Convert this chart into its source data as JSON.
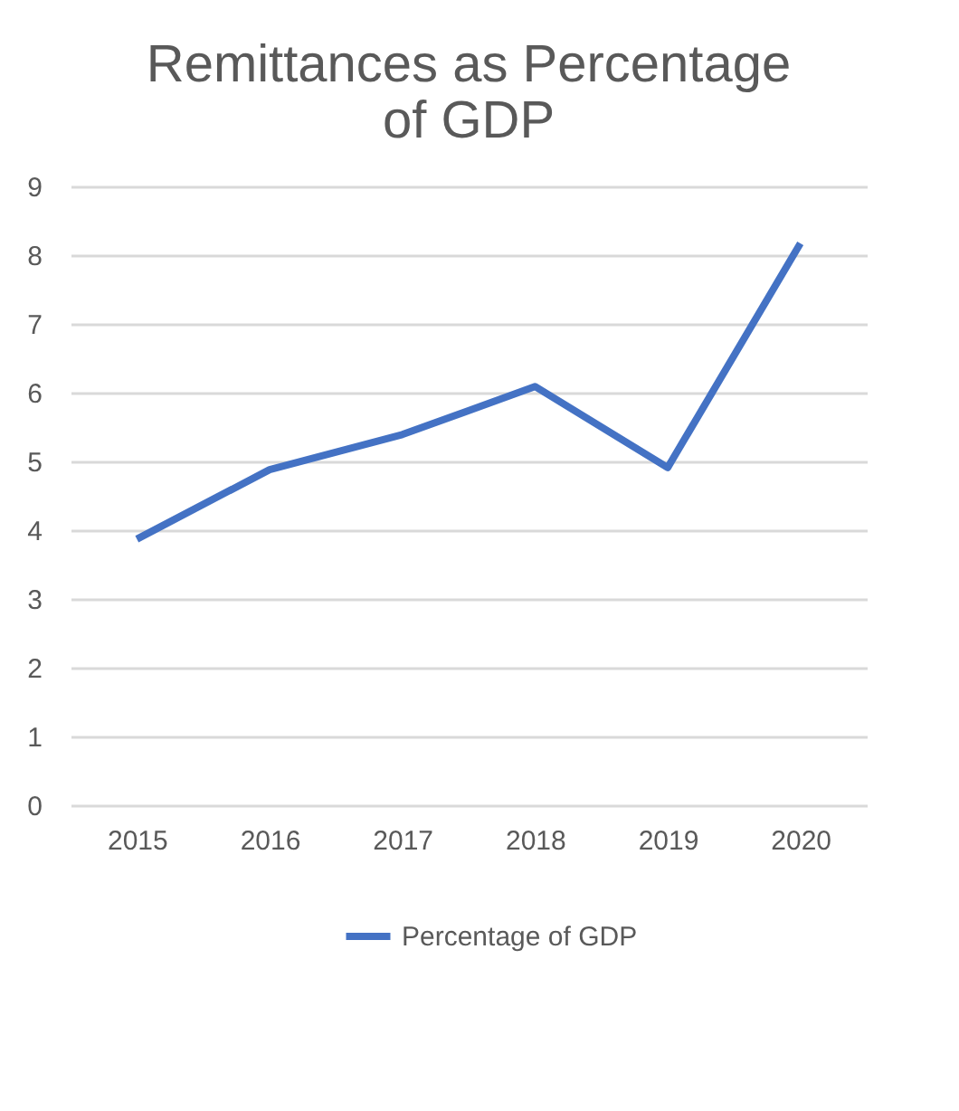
{
  "chart_data": {
    "type": "line",
    "title": "Remittances as Percentage of GDP",
    "categories": [
      "2015",
      "2016",
      "2017",
      "2018",
      "2019",
      "2020"
    ],
    "series": [
      {
        "name": "Percentage of GDP",
        "color": "#4472c4",
        "values": [
          3.87,
          4.88,
          5.39,
          6.09,
          4.91,
          8.17
        ]
      }
    ],
    "ylim": [
      0,
      9
    ],
    "yticks": [
      0,
      1,
      2,
      3,
      4,
      5,
      6,
      7,
      8,
      9
    ],
    "grid": "y",
    "legend": "bottom",
    "marker": "none",
    "line_style": "solid"
  }
}
